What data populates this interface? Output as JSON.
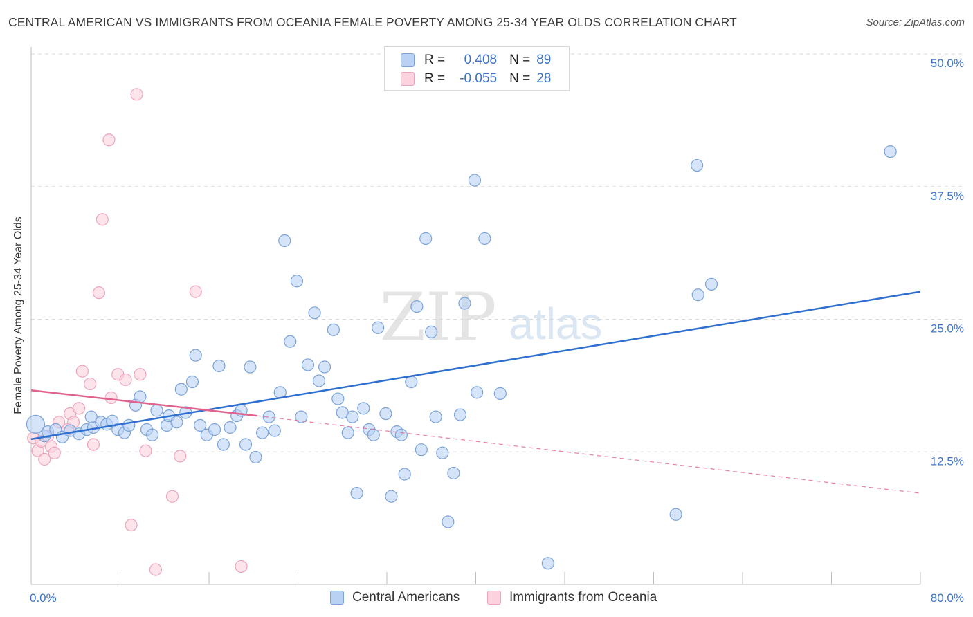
{
  "title": "CENTRAL AMERICAN VS IMMIGRANTS FROM OCEANIA FEMALE POVERTY AMONG 25-34 YEAR OLDS CORRELATION CHART",
  "source": "Source: ZipAtlas.com",
  "watermark": {
    "zip": "ZIP",
    "atlas": "atlas"
  },
  "legend": {
    "rows": [
      {
        "r_label": "R =",
        "r_value": "0.408",
        "n_label": "N =",
        "n_value": "89"
      },
      {
        "r_label": "R =",
        "r_value": "-0.055",
        "n_label": "N =",
        "n_value": "28"
      }
    ]
  },
  "bottom_legend": {
    "series1": "Central Americans",
    "series2": "Immigrants from Oceania"
  },
  "colors": {
    "blue_fill": "#b9d2f3",
    "blue_stroke": "#7ba3d9",
    "blue_line": "#2f6fd0",
    "pink_fill": "#fbd2de",
    "pink_stroke": "#eda4bb",
    "pink_line": "#e2628e",
    "tick_label": "#3b73c8",
    "grid": "#d9d9d9"
  },
  "chart_data": {
    "type": "scatter",
    "title": "CENTRAL AMERICAN VS IMMIGRANTS FROM OCEANIA FEMALE POVERTY AMONG 25-34 YEAR OLDS CORRELATION CHART",
    "xlabel": "",
    "ylabel": "Female Poverty Among 25-34 Year Olds",
    "xlim": [
      0,
      80
    ],
    "ylim": [
      0,
      50
    ],
    "x_tick_labels": [
      "0.0%",
      "80.0%"
    ],
    "y_ticks": [
      12.5,
      25.0,
      37.5,
      50.0
    ],
    "y_tick_labels": [
      "12.5%",
      "25.0%",
      "37.5%",
      "50.0%"
    ],
    "grid": true,
    "series": [
      {
        "name": "Central Americans",
        "color": "#b9d2f3",
        "trend": {
          "x": [
            0,
            80
          ],
          "y": [
            13.7,
            27.6
          ],
          "style": "solid"
        },
        "points": [
          [
            0.4,
            15.1,
            "big"
          ],
          [
            1.2,
            14.0
          ],
          [
            1.5,
            14.4
          ],
          [
            2.2,
            14.6
          ],
          [
            2.8,
            13.9
          ],
          [
            3.5,
            14.5
          ],
          [
            4.3,
            14.2
          ],
          [
            5.0,
            14.6
          ],
          [
            5.6,
            14.8
          ],
          [
            5.4,
            15.8
          ],
          [
            6.3,
            15.3
          ],
          [
            6.8,
            15.1
          ],
          [
            7.3,
            15.4
          ],
          [
            7.8,
            14.6
          ],
          [
            8.4,
            14.3
          ],
          [
            8.8,
            15.0
          ],
          [
            9.4,
            16.9
          ],
          [
            9.8,
            17.7
          ],
          [
            10.4,
            14.6
          ],
          [
            10.9,
            14.1
          ],
          [
            11.3,
            16.4
          ],
          [
            12.2,
            15.0
          ],
          [
            12.4,
            15.9
          ],
          [
            13.1,
            15.3
          ],
          [
            13.5,
            18.4
          ],
          [
            13.9,
            16.2
          ],
          [
            14.5,
            19.1
          ],
          [
            14.8,
            21.6
          ],
          [
            15.2,
            15.0
          ],
          [
            15.8,
            14.1
          ],
          [
            16.5,
            14.6
          ],
          [
            16.9,
            20.6
          ],
          [
            17.3,
            13.2
          ],
          [
            17.9,
            14.8
          ],
          [
            18.5,
            15.9
          ],
          [
            18.9,
            16.4
          ],
          [
            19.3,
            13.2
          ],
          [
            19.7,
            20.5
          ],
          [
            20.2,
            12.0
          ],
          [
            20.8,
            14.3
          ],
          [
            21.4,
            15.8
          ],
          [
            21.9,
            14.5
          ],
          [
            22.4,
            18.1
          ],
          [
            22.8,
            32.4
          ],
          [
            23.3,
            22.9
          ],
          [
            23.9,
            28.6
          ],
          [
            24.3,
            15.8
          ],
          [
            24.9,
            20.7
          ],
          [
            25.5,
            25.6
          ],
          [
            25.9,
            19.2
          ],
          [
            26.4,
            20.5
          ],
          [
            27.2,
            24.0
          ],
          [
            27.6,
            17.5
          ],
          [
            28.0,
            16.2
          ],
          [
            28.5,
            14.3
          ],
          [
            28.9,
            15.8
          ],
          [
            29.3,
            8.6
          ],
          [
            29.9,
            16.6
          ],
          [
            30.4,
            14.6
          ],
          [
            30.8,
            14.1
          ],
          [
            31.2,
            24.2
          ],
          [
            31.9,
            16.1
          ],
          [
            32.4,
            8.3
          ],
          [
            32.9,
            14.4
          ],
          [
            33.3,
            14.1
          ],
          [
            33.6,
            10.4
          ],
          [
            34.2,
            19.1
          ],
          [
            34.7,
            26.2
          ],
          [
            35.1,
            12.7
          ],
          [
            35.5,
            32.6
          ],
          [
            36.0,
            23.8
          ],
          [
            36.4,
            15.8
          ],
          [
            37.0,
            12.4
          ],
          [
            37.5,
            5.9
          ],
          [
            38.0,
            10.5
          ],
          [
            38.6,
            16.0
          ],
          [
            39.0,
            26.5
          ],
          [
            39.9,
            38.1
          ],
          [
            40.1,
            18.1
          ],
          [
            40.8,
            32.6
          ],
          [
            42.2,
            18.0
          ],
          [
            46.5,
            2.0
          ],
          [
            58.0,
            6.6
          ],
          [
            59.9,
            39.5
          ],
          [
            60.0,
            27.3
          ],
          [
            61.2,
            28.3
          ],
          [
            77.3,
            40.8
          ]
        ]
      },
      {
        "name": "Immigrants from Oceania",
        "color": "#fbd2de",
        "trend": {
          "x": [
            0,
            20.3
          ],
          "y": [
            18.3,
            15.9
          ],
          "style": "solid",
          "extended": {
            "x": [
              20.3,
              80
            ],
            "y": [
              15.9,
              8.6
            ],
            "style": "dashed"
          }
        },
        "points": [
          [
            0.2,
            13.8
          ],
          [
            0.6,
            12.6
          ],
          [
            0.9,
            13.5
          ],
          [
            1.2,
            11.8
          ],
          [
            1.5,
            14.0
          ],
          [
            1.8,
            13.0
          ],
          [
            2.1,
            12.4
          ],
          [
            2.5,
            15.3
          ],
          [
            3.3,
            14.6
          ],
          [
            3.5,
            16.1
          ],
          [
            3.8,
            15.3
          ],
          [
            4.3,
            16.6
          ],
          [
            4.6,
            20.1
          ],
          [
            5.3,
            18.9
          ],
          [
            5.6,
            13.2
          ],
          [
            6.1,
            27.5
          ],
          [
            6.4,
            34.4
          ],
          [
            7.0,
            41.9
          ],
          [
            7.2,
            17.6
          ],
          [
            7.8,
            19.8
          ],
          [
            8.5,
            19.3
          ],
          [
            9.0,
            5.6
          ],
          [
            9.5,
            46.2
          ],
          [
            9.8,
            19.8
          ],
          [
            10.3,
            12.6
          ],
          [
            11.2,
            1.4
          ],
          [
            12.7,
            8.3
          ],
          [
            13.4,
            12.1
          ],
          [
            14.8,
            27.6
          ],
          [
            18.9,
            1.7
          ]
        ]
      }
    ]
  }
}
